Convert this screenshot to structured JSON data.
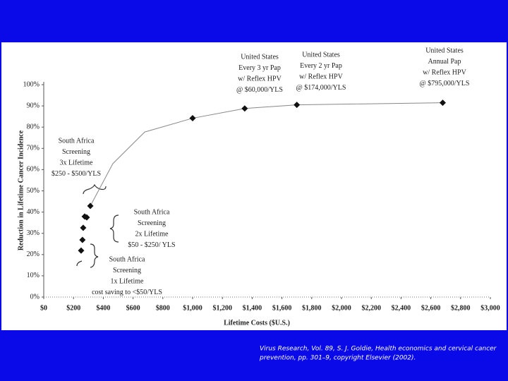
{
  "chart_data": {
    "type": "scatter",
    "xlabel": "Lifetime Costs ($U.S.)",
    "ylabel": "Reduction in Lifetime Cancer Incidence",
    "xlim": [
      0,
      3000
    ],
    "ylim": [
      0,
      100
    ],
    "xticks": [
      {
        "value": 0,
        "label": "$0"
      },
      {
        "value": 200,
        "label": "$200"
      },
      {
        "value": 400,
        "label": "$400"
      },
      {
        "value": 600,
        "label": "$600"
      },
      {
        "value": 800,
        "label": "$800"
      },
      {
        "value": 1000,
        "label": "$1,000"
      },
      {
        "value": 1200,
        "label": "$1,200"
      },
      {
        "value": 1400,
        "label": "$1,400"
      },
      {
        "value": 1600,
        "label": "$1,600"
      },
      {
        "value": 1800,
        "label": "$1,800"
      },
      {
        "value": 2000,
        "label": "$2,000"
      },
      {
        "value": 2200,
        "label": "$2,200"
      },
      {
        "value": 2400,
        "label": "$2,400"
      },
      {
        "value": 2600,
        "label": "$2,600"
      },
      {
        "value": 2800,
        "label": "$2,800"
      },
      {
        "value": 3000,
        "label": "$3,000"
      }
    ],
    "yticks": [
      {
        "value": 0,
        "label": "0%"
      },
      {
        "value": 10,
        "label": "10%"
      },
      {
        "value": 20,
        "label": "20%"
      },
      {
        "value": 30,
        "label": "30%"
      },
      {
        "value": 40,
        "label": "40%"
      },
      {
        "value": 50,
        "label": "50%"
      },
      {
        "value": 60,
        "label": "60%"
      },
      {
        "value": 70,
        "label": "70%"
      },
      {
        "value": 80,
        "label": "80%"
      },
      {
        "value": 90,
        "label": "90%"
      },
      {
        "value": 100,
        "label": "100%"
      }
    ],
    "series": [
      {
        "kind": "line",
        "color": "#888888",
        "x": [
          313,
          464,
          678,
          1000,
          1350,
          1700,
          2680
        ],
        "values": [
          42.9,
          62.8,
          77.7,
          84.2,
          88.8,
          90.5,
          91.5
        ]
      },
      {
        "kind": "diamond",
        "color": "#111111",
        "x": [
          251,
          260,
          265,
          275,
          289,
          313,
          1000,
          1350,
          1700,
          2680
        ],
        "values": [
          21.9,
          26.9,
          32.6,
          37.9,
          37.5,
          42.9,
          84.2,
          88.8,
          90.5,
          91.5
        ]
      }
    ],
    "annotations": [
      {
        "lines": [
          "United States",
          "Every 3 yr Pap",
          "w/ Reflex HPV",
          "@ $60,000/YLS"
        ]
      },
      {
        "lines": [
          "United States",
          "Every 2 yr Pap",
          "w/ Reflex HPV",
          "@ $174,000/YLS"
        ]
      },
      {
        "lines": [
          "United States",
          "Annual Pap",
          "w/ Reflex HPV",
          "@ $795,000/YLS"
        ]
      },
      {
        "lines": [
          "South Africa",
          "Screening",
          "3x  Lifetime",
          "$250 - $500/YLS"
        ]
      },
      {
        "lines": [
          "South Africa",
          "Screening",
          "2x Lifetime",
          "$50 - $250/ YLS"
        ]
      },
      {
        "lines": [
          "South Africa",
          "Screening",
          "1x Lifetime",
          "cost saving to <$50/YLS"
        ]
      }
    ]
  },
  "citation": [
    "Virus Research, Vol. 89, S. J. Goldie, Health economics and cervical cancer",
    "prevention, pp. 301–9, copyright Elsevier (2002)."
  ]
}
